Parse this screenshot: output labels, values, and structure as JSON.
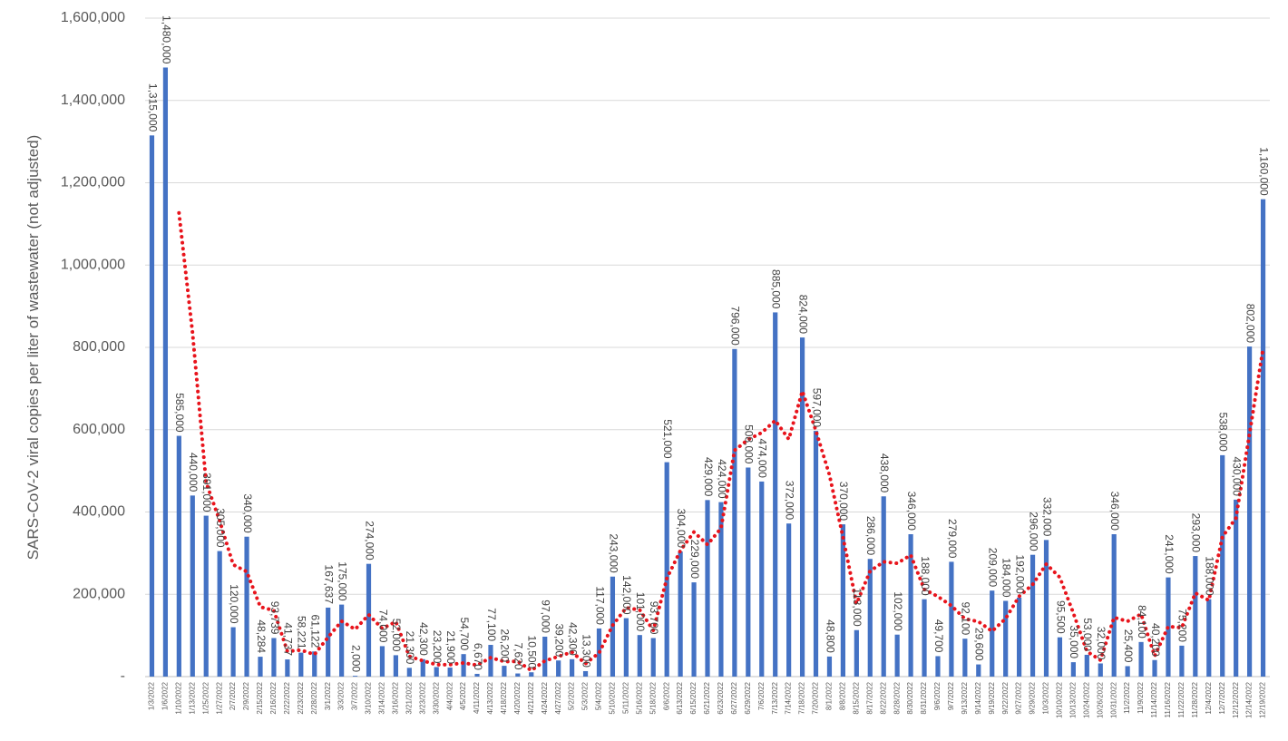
{
  "chart_data": {
    "type": "bar",
    "y_label": "SARS-CoV-2 viral copies per liter of wastewater (not adjusted)",
    "color": "#4472c4",
    "grid": true,
    "trendline": {
      "type": "moving_average",
      "period": 3,
      "color": "#e8141c"
    },
    "ylim": [
      0,
      1600000
    ],
    "yticks": [
      {
        "value": 0,
        "label": "-"
      },
      {
        "value": 200000,
        "label": "200,000"
      },
      {
        "value": 400000,
        "label": "400,000"
      },
      {
        "value": 600000,
        "label": "600,000"
      },
      {
        "value": 800000,
        "label": "800,000"
      },
      {
        "value": 1000000,
        "label": "1,000,000"
      },
      {
        "value": 1200000,
        "label": "1,200,000"
      },
      {
        "value": 1400000,
        "label": "1,400,000"
      },
      {
        "value": 1600000,
        "label": "1,600,000"
      }
    ],
    "categories": [
      "1/3/2022",
      "1/6/2022",
      "1/10/2022",
      "1/13/2022",
      "1/25/2022",
      "1/27/2022",
      "2/7/2022",
      "2/9/2022",
      "2/15/2022",
      "2/16/2022",
      "2/22/2022",
      "2/23/2022",
      "2/28/2022",
      "3/1/2022",
      "3/3/2022",
      "3/7/2022",
      "3/10/2022",
      "3/14/2022",
      "3/16/2022",
      "3/21/2022",
      "3/23/2022",
      "3/30/2022",
      "4/4/2022",
      "4/5/2022",
      "4/11/2022",
      "4/13/2022",
      "4/18/2022",
      "4/20/2022",
      "4/21/2022",
      "4/24/2022",
      "4/27/2022",
      "5/2/2022",
      "5/3/2022",
      "5/4/2022",
      "5/10/2022",
      "5/11/2022",
      "5/16/2022",
      "5/18/2022",
      "6/6/2022",
      "6/13/2022",
      "6/15/2022",
      "6/21/2022",
      "6/23/2022",
      "6/27/2022",
      "6/29/2022",
      "7/6/2022",
      "7/13/2022",
      "7/14/2022",
      "7/18/2022",
      "7/20/2022",
      "8/1/2022",
      "8/8/2022",
      "8/15/2022",
      "8/17/2022",
      "8/22/2022",
      "8/28/2022",
      "8/30/2022",
      "8/31/2022",
      "9/6/2022",
      "9/7/2022",
      "9/13/2022",
      "9/14/2022",
      "9/19/2022",
      "9/22/2022",
      "9/27/2022",
      "9/29/2022",
      "10/3/2022",
      "10/10/2022",
      "10/13/2022",
      "10/24/2022",
      "10/26/2022",
      "10/31/2022",
      "11/2/2022",
      "11/9/2022",
      "11/14/2022",
      "11/16/2022",
      "11/22/2022",
      "11/28/2022",
      "12/4/2022",
      "12/7/2022",
      "12/12/2022",
      "12/14/2022",
      "12/19/2022"
    ],
    "values": [
      1315000,
      1480000,
      585000,
      440000,
      391000,
      305000,
      120000,
      340000,
      48284,
      93739,
      41737,
      58221,
      61122,
      167637,
      175000,
      2000,
      274000,
      74000,
      52000,
      21300,
      42300,
      23200,
      21900,
      54700,
      6670,
      77100,
      26200,
      7620,
      10500,
      97000,
      39200,
      42300,
      13300,
      117000,
      243000,
      142000,
      101000,
      93700,
      521000,
      304000,
      229000,
      429000,
      424000,
      796000,
      508000,
      474000,
      885000,
      372000,
      824000,
      597000,
      48800,
      370000,
      113000,
      286000,
      438000,
      102000,
      346000,
      188000,
      49700,
      279000,
      92100,
      29600,
      209000,
      184000,
      192000,
      296000,
      332000,
      95500,
      35000,
      53000,
      32000,
      346000,
      25400,
      84100,
      40200,
      241000,
      75200,
      293000,
      188000,
      538000,
      430000,
      802000,
      1160000
    ],
    "value_labels": [
      "1,315,000",
      "1,480,000",
      "585,000",
      "440,000",
      "391,000",
      "305,000",
      "120,000",
      "340,000",
      "48,284",
      "93,739",
      "41,737",
      "58,221",
      "61,122",
      "167,637",
      "175,000",
      "2,000",
      "274,000",
      "74,000",
      "52,000",
      "21,300",
      "42,300",
      "23,200",
      "21,900",
      "54,700",
      "6,670",
      "77,100",
      "26,200",
      "7,620",
      "10,500",
      "97,000",
      "39,200",
      "42,300",
      "13,300",
      "117,000",
      "243,000",
      "142,000",
      "101,000",
      "93,700",
      "521,000",
      "304,000",
      "229,000",
      "429,000",
      "424,000",
      "796,000",
      "508,000",
      "474,000",
      "885,000",
      "372,000",
      "824,000",
      "597,000",
      "48,800",
      "370,000",
      "113,000",
      "286,000",
      "438,000",
      "102,000",
      "346,000",
      "188,000",
      "49,700",
      "279,000",
      "92,100",
      "29,600",
      "209,000",
      "184,000",
      "192,000",
      "296,000",
      "332,000",
      "95,500",
      "35,000",
      "53,000",
      "32,000",
      "346,000",
      "25,400",
      "84,100",
      "40,200",
      "241,000",
      "75,200",
      "293,000",
      "188,000",
      "538,000",
      "430,000",
      "802,000",
      "1,160,000"
    ]
  }
}
